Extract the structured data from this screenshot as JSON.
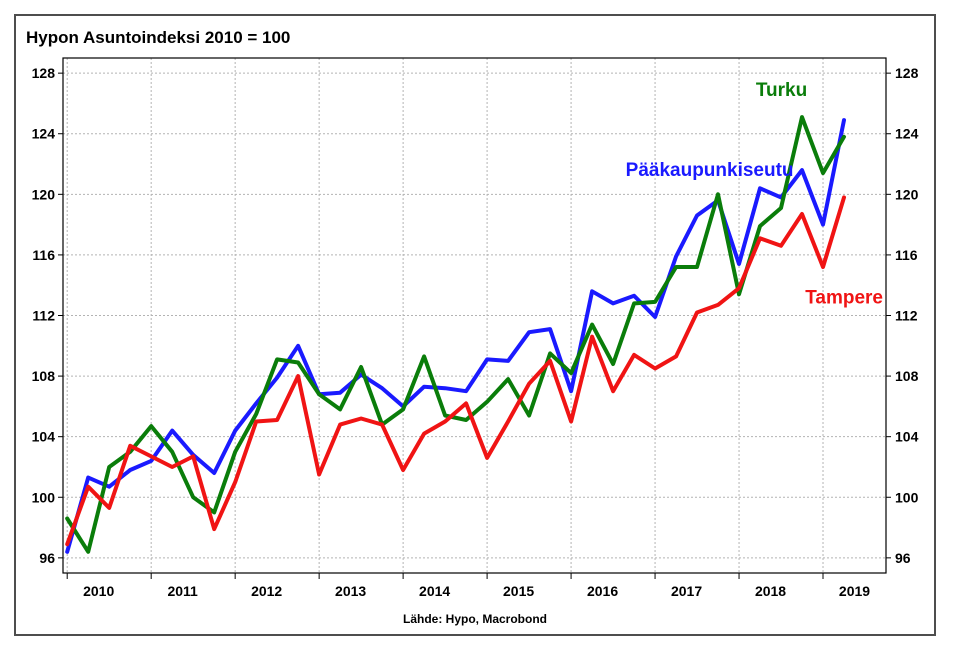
{
  "chart_data": {
    "type": "line",
    "title": "Hypon Asuntoindeksi 2010 = 100",
    "source": "Lähde: Hypo, Macrobond",
    "xlabel": "",
    "ylabel": "",
    "ylim": [
      95,
      129
    ],
    "yticks": [
      96,
      100,
      104,
      108,
      112,
      116,
      120,
      124,
      128
    ],
    "year_labels": [
      "2010",
      "2011",
      "2012",
      "2013",
      "2014",
      "2015",
      "2016",
      "2017",
      "2018",
      "2019"
    ],
    "x_start": 2009.75,
    "x_step": 0.25,
    "grid": true,
    "secondary_y_axis": true,
    "series": [
      {
        "name": "Pääkaupunkiseutu",
        "color": "#1a1aff",
        "values": [
          96.4,
          101.3,
          100.7,
          101.8,
          102.4,
          104.4,
          102.8,
          101.6,
          104.4,
          106.2,
          107.9,
          110.0,
          106.8,
          106.9,
          108.1,
          107.2,
          106.0,
          107.3,
          107.2,
          107.0,
          109.1,
          109.0,
          110.9,
          111.1,
          107.0,
          113.6,
          112.8,
          113.3,
          111.9,
          115.9,
          118.6,
          119.6,
          115.4,
          120.4,
          119.8,
          121.6,
          118.0,
          124.9
        ]
      },
      {
        "name": "Turku",
        "color": "#0a7d0a",
        "values": [
          98.6,
          96.4,
          102.0,
          103.0,
          104.7,
          103.0,
          100.0,
          99.0,
          103.0,
          105.5,
          109.1,
          108.9,
          106.8,
          105.8,
          108.6,
          104.8,
          105.8,
          109.3,
          105.4,
          105.1,
          106.3,
          107.8,
          105.4,
          109.5,
          108.2,
          111.4,
          108.8,
          112.8,
          112.9,
          115.2,
          115.2,
          120.0,
          113.4,
          117.9,
          119.1,
          125.1,
          121.4,
          123.8
        ]
      },
      {
        "name": "Tampere",
        "color": "#f01414",
        "values": [
          96.9,
          100.7,
          99.3,
          103.4,
          102.7,
          102.0,
          102.7,
          97.9,
          101.0,
          105.0,
          105.1,
          108.0,
          101.5,
          104.8,
          105.2,
          104.8,
          101.8,
          104.2,
          105.0,
          106.2,
          102.6,
          105.0,
          107.5,
          109.0,
          105.0,
          110.6,
          107.0,
          109.4,
          108.5,
          109.3,
          112.2,
          112.7,
          113.8,
          117.1,
          116.6,
          118.7,
          115.2,
          119.8
        ]
      }
    ],
    "annotations": [
      {
        "series": "Turku",
        "text": "Turku"
      },
      {
        "series": "Pääkaupunkiseutu",
        "text": "Pääkaupunkiseutu"
      },
      {
        "series": "Tampere",
        "text": "Tampere"
      }
    ]
  }
}
